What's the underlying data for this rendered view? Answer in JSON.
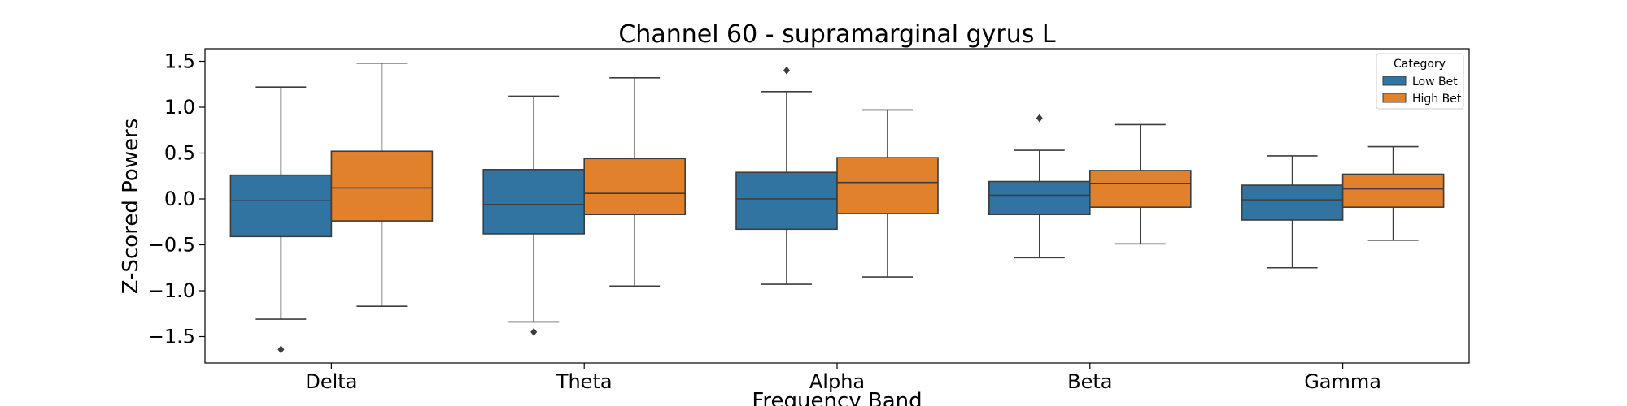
{
  "chart_data": {
    "type": "boxplot",
    "title": "Channel 60 - supramarginal gyrus L",
    "xlabel": "Frequency Band",
    "ylabel": "Z-Scored Powers",
    "ylim": [
      -1.8,
      1.63
    ],
    "yticks": [
      1.5,
      1.0,
      0.5,
      0.0,
      -0.5,
      -1.0,
      -1.5
    ],
    "ytick_labels": [
      "1.5",
      "1.0",
      "0.5",
      "0.0",
      "−0.5",
      "−1.0",
      "−1.5"
    ],
    "categories": [
      "Delta",
      "Theta",
      "Alpha",
      "Beta",
      "Gamma"
    ],
    "grid": false,
    "legend": {
      "title": "Category",
      "position": "top-right"
    },
    "series": [
      {
        "name": "Low Bet",
        "color": "#3274a1",
        "boxes": [
          {
            "whisker_low": -1.31,
            "q1": -0.41,
            "median": -0.02,
            "q3": 0.26,
            "whisker_high": 1.22,
            "outliers": [
              -1.64
            ]
          },
          {
            "whisker_low": -1.34,
            "q1": -0.38,
            "median": -0.06,
            "q3": 0.32,
            "whisker_high": 1.12,
            "outliers": [
              -1.45
            ]
          },
          {
            "whisker_low": -0.93,
            "q1": -0.33,
            "median": 0.0,
            "q3": 0.29,
            "whisker_high": 1.17,
            "outliers": [
              1.4
            ]
          },
          {
            "whisker_low": -0.64,
            "q1": -0.17,
            "median": 0.04,
            "q3": 0.19,
            "whisker_high": 0.53,
            "outliers": [
              0.88
            ]
          },
          {
            "whisker_low": -0.75,
            "q1": -0.23,
            "median": -0.01,
            "q3": 0.15,
            "whisker_high": 0.47,
            "outliers": []
          }
        ]
      },
      {
        "name": "High Bet",
        "color": "#e1812c",
        "boxes": [
          {
            "whisker_low": -1.17,
            "q1": -0.24,
            "median": 0.12,
            "q3": 0.52,
            "whisker_high": 1.48,
            "outliers": []
          },
          {
            "whisker_low": -0.95,
            "q1": -0.17,
            "median": 0.06,
            "q3": 0.44,
            "whisker_high": 1.32,
            "outliers": []
          },
          {
            "whisker_low": -0.85,
            "q1": -0.16,
            "median": 0.18,
            "q3": 0.45,
            "whisker_high": 0.97,
            "outliers": []
          },
          {
            "whisker_low": -0.49,
            "q1": -0.09,
            "median": 0.17,
            "q3": 0.31,
            "whisker_high": 0.81,
            "outliers": []
          },
          {
            "whisker_low": -0.45,
            "q1": -0.09,
            "median": 0.11,
            "q3": 0.27,
            "whisker_high": 0.57,
            "outliers": []
          }
        ]
      }
    ]
  }
}
